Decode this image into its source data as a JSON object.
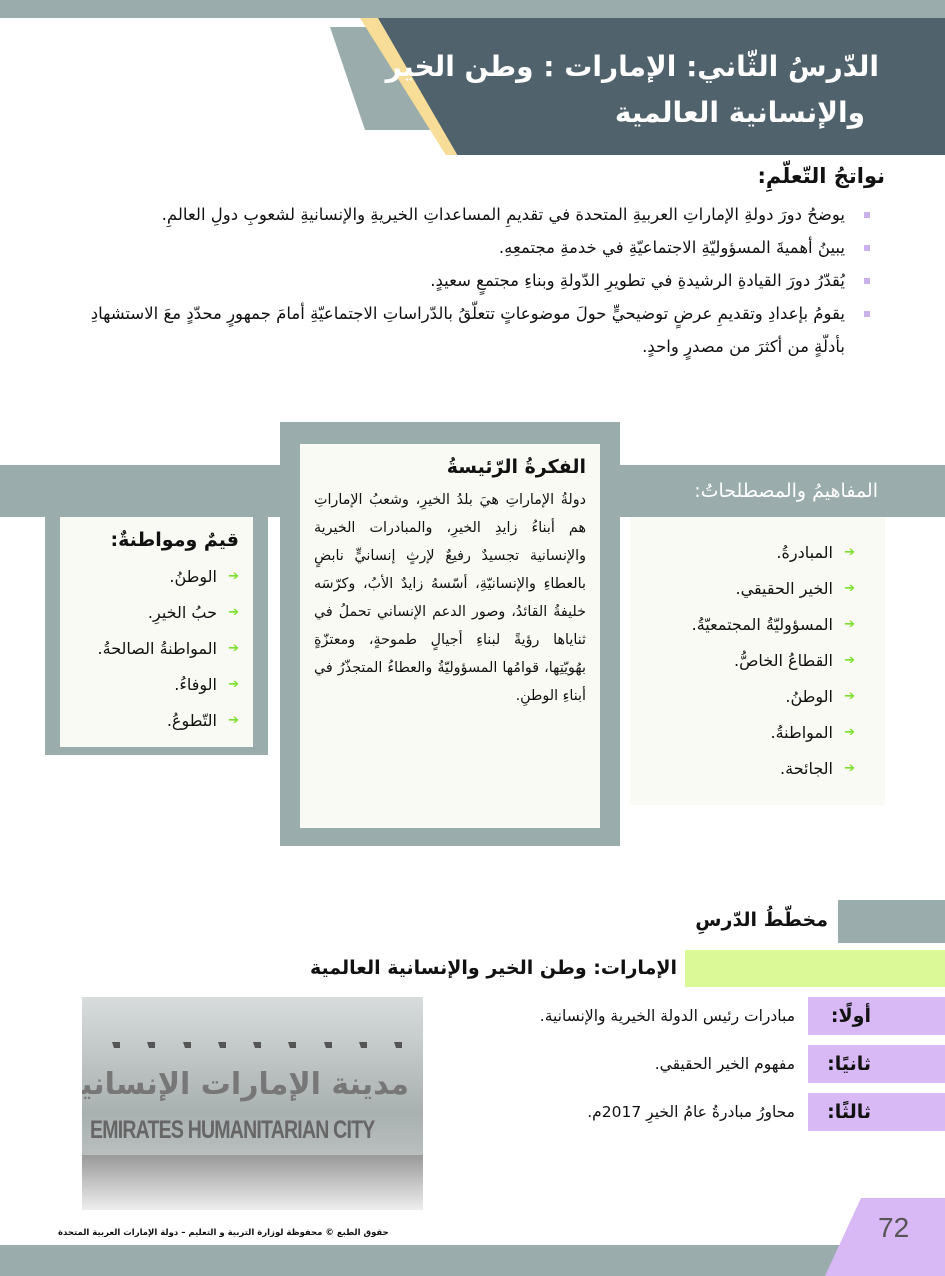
{
  "header": {
    "title_line1": "الدّرسُ الثّاني: الإمارات : وطن الخير",
    "title_line2": "والإنسانية العالمية"
  },
  "outcomes": {
    "heading": "نواتجُ التّعلّمِ:",
    "items": [
      "يوضحُ دورَ دولةِ الإماراتِ العربيةِ المتحدة في تقديمِ المساعداتِ الخيريةِ والإنسانيةِ لشعوبِ دولِ العالمِ.",
      "يبينُ أهميةَ المسؤوليّةِ الاجتماعيّةِ في خدمةِ مجتمعِهِ.",
      "يُقدّرُ دورَ القيادةِ الرشيدةِ في تطويرِ الدّولةِ وبناءِ مجتمعٍ سعيدٍ.",
      "يقومُ بإعدادِ وتقديمِ عرضٍ توضيحيٍّ حولَ موضوعاتٍ تتعلّقُ بالدّراساتِ الاجتماعيّةِ أمامَ جمهورٍ محدّدٍ معَ الاستشهادِ بأدلّةٍ من أكثرَ من مصدرٍ واحدٍ."
    ]
  },
  "concepts": {
    "heading": "المفاهيمُ والمصطلحاتُ:",
    "items": [
      "المبادرةُ.",
      "الخير الحقيقي.",
      "المسؤوليّةُ المجتمعيّةُ.",
      "القطاعُ الخاصُّ.",
      "الوطنُ.",
      "المواطنةُ.",
      "الجائحة."
    ]
  },
  "main_idea": {
    "heading": "الفكرةُ الرّئيسةُ",
    "text": "دولةُ الإماراتِ هيَ بلدُ الخيرِ، وشعبُ الإماراتِ هم أبناءُ زايدِ الخيرِ، والمبادرات الخيرية والإنسانية تجسيدٌ رفيعٌ لإرثٍ إنسانيٍّ نابضٍ بالعطاءِ والإنسانيّةِ، أسّسهُ زايدٌ الأبُ، وكرّسَه خليفةُ القائدُ، وصور الدعم الإنساني تحملُ في ثناياها رؤيةً لبناءِ أجيالٍ طموحةٍ، ومعتزّةٍ بهُويّتِها، قوامُها المسؤوليّةُ والعطاءُ المتجذّرُ في أبناءِ الوطنِ."
  },
  "values": {
    "heading": "قيمٌ ومواطنةٌ:",
    "items": [
      "الوطنُ.",
      "حبُ الخيرِ.",
      "المواطنةُ الصالحةُ.",
      "الوفاءُ.",
      "التّطوعُ."
    ]
  },
  "plan": {
    "heading": "مخطّطُ الدّرسِ",
    "lesson_title": "الإمارات: وطن الخير والإنسانية العالمية",
    "items": [
      {
        "label": "أولًا:",
        "text": "مبادرات رئيس الدولة الخيرية والإنسانية."
      },
      {
        "label": "ثانيًا:",
        "text": "مفهوم الخير الحقيقي."
      },
      {
        "label": "ثالثًا:",
        "text": "محاورُ مبادرةُ عامُ الخيرِ 2017م."
      }
    ]
  },
  "photo": {
    "sign_arabic": "مدينة الإمارات الإنسانية",
    "sign_english": "EMIRATES HUMANITARIAN CITY"
  },
  "footer": {
    "copyright": "حقوق الطبع © محفوظة لوزارة التربية و التعليم – دولة الإمارات العربية المتحدة",
    "page_number": "72"
  },
  "colors": {
    "header_dark": "#50636d",
    "gray": "#9aacab",
    "accent_yellow": "#f7dd97",
    "green": "#dcf998",
    "purple": "#d8b8f5",
    "arrow_green": "#7be12e"
  }
}
